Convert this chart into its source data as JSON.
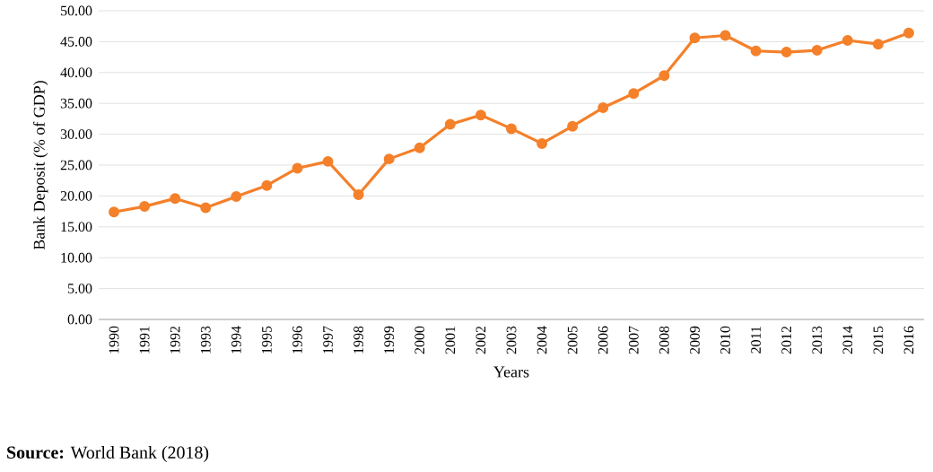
{
  "chart_data": {
    "type": "line",
    "xlabel": "Years",
    "ylabel": "Bank Deposit (% of GDP)",
    "annotations": [
      "**Source:** World Bank (2018)"
    ],
    "categories": [
      "1990",
      "1991",
      "1992",
      "1993",
      "1994",
      "1995",
      "1996",
      "1997",
      "1998",
      "1999",
      "2000",
      "2001",
      "2002",
      "2003",
      "2004",
      "2005",
      "2006",
      "2007",
      "2008",
      "2009",
      "2010",
      "2011",
      "2012",
      "2013",
      "2014",
      "2015",
      "2016"
    ],
    "series": [
      {
        "color": "#f4802a",
        "values": [
          17.4,
          18.3,
          19.6,
          18.1,
          19.9,
          21.7,
          24.5,
          25.6,
          20.2,
          26.0,
          27.8,
          31.6,
          33.1,
          30.9,
          28.5,
          31.3,
          34.3,
          36.6,
          39.5,
          45.6,
          46.0,
          43.5,
          43.3,
          43.6,
          45.2,
          44.6,
          46.4
        ]
      }
    ],
    "ylim": [
      0,
      50
    ],
    "yticks": [
      {
        "value": 0,
        "label": "0.00"
      },
      {
        "value": 5,
        "label": "5.00"
      },
      {
        "value": 10,
        "label": "10.00"
      },
      {
        "value": 15,
        "label": "15.00"
      },
      {
        "value": 20,
        "label": "20.00"
      },
      {
        "value": 25,
        "label": "25.00"
      },
      {
        "value": 30,
        "label": "30.00"
      },
      {
        "value": 35,
        "label": "35.00"
      },
      {
        "value": 40,
        "label": "40.00"
      },
      {
        "value": 45,
        "label": "45.00"
      },
      {
        "value": 50,
        "label": "50.00"
      }
    ],
    "grid": "y",
    "marker": "circle",
    "line_style": "solid"
  }
}
